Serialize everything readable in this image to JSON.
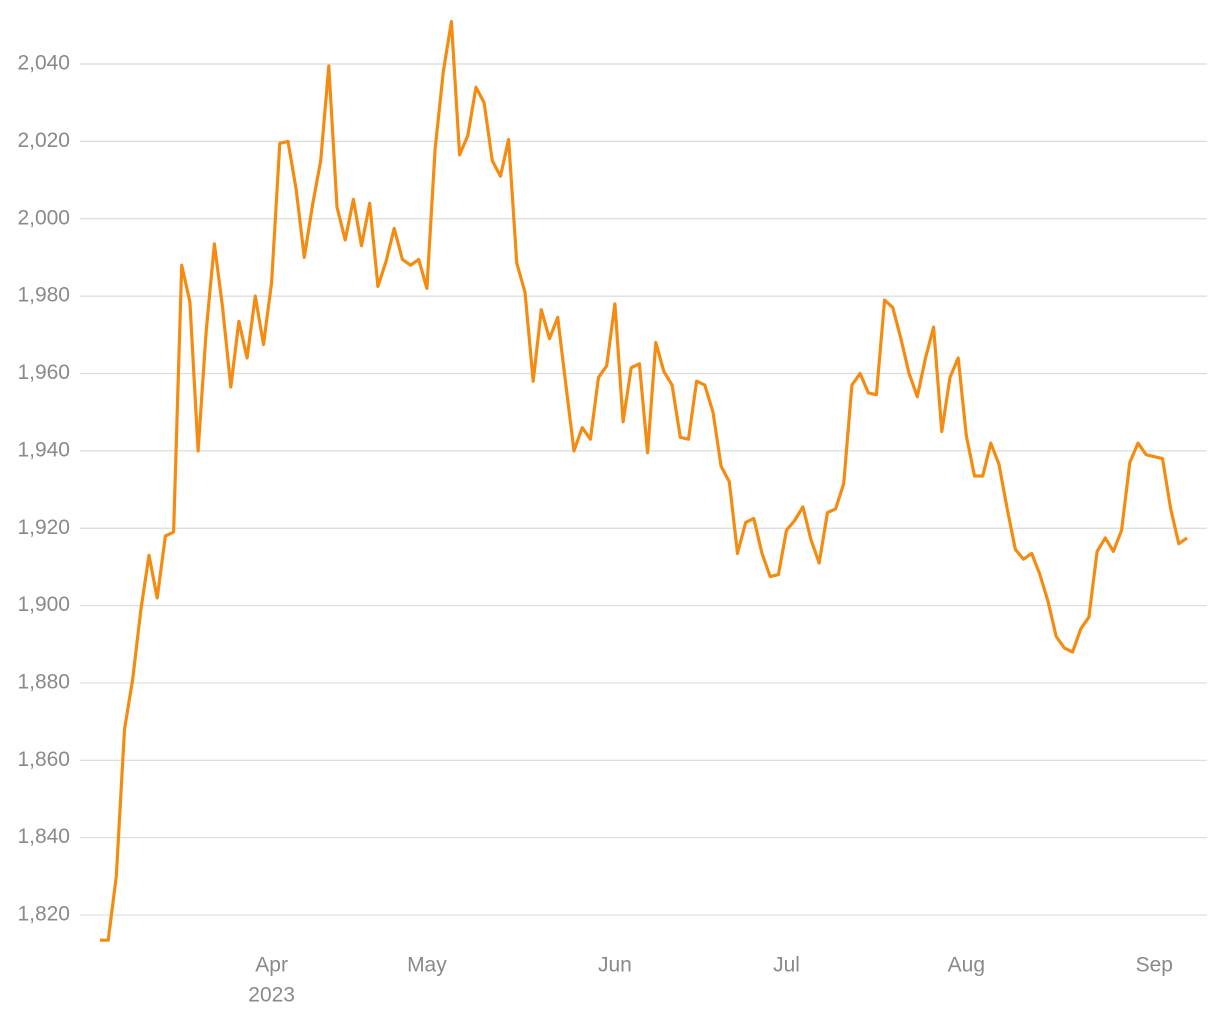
{
  "chart_data": {
    "type": "line",
    "categories": [
      null,
      null,
      null,
      null,
      null,
      null,
      null,
      null,
      null,
      null,
      null,
      null,
      null,
      null,
      null,
      null,
      null,
      null,
      null,
      null,
      null,
      "Apr",
      null,
      null,
      null,
      null,
      null,
      null,
      null,
      null,
      null,
      null,
      null,
      null,
      null,
      null,
      null,
      null,
      null,
      null,
      "May",
      null,
      null,
      null,
      null,
      null,
      null,
      null,
      null,
      null,
      null,
      null,
      null,
      null,
      null,
      null,
      null,
      null,
      null,
      null,
      null,
      null,
      null,
      "Jun",
      null,
      null,
      null,
      null,
      null,
      null,
      null,
      null,
      null,
      null,
      null,
      null,
      null,
      null,
      null,
      null,
      null,
      null,
      null,
      null,
      "Jul",
      null,
      null,
      null,
      null,
      null,
      null,
      null,
      null,
      null,
      null,
      null,
      null,
      null,
      null,
      null,
      null,
      null,
      null,
      null,
      null,
      null,
      "Aug",
      null,
      null,
      null,
      null,
      null,
      null,
      null,
      null,
      null,
      null,
      null,
      null,
      null,
      null,
      null,
      null,
      null,
      null,
      null,
      null,
      null,
      null,
      "Sep",
      null,
      null,
      null,
      null
    ],
    "x_year_label": "2023",
    "series": [
      {
        "color": "#f58c12",
        "values": [
          1813.5,
          1813.5,
          1830,
          1868,
          1881,
          1899,
          1913,
          1902,
          1918,
          1919,
          1988,
          1978.5,
          1940,
          1971,
          1993.5,
          1977,
          1956.5,
          1973.5,
          1964,
          1980,
          1967.5,
          1983.5,
          2019.5,
          2020,
          2007.5,
          1990,
          2003.5,
          2015,
          2039.5,
          2003,
          1994.5,
          2005,
          1993,
          2004,
          1982.5,
          1989,
          1997.5,
          1989.5,
          1988,
          1989.5,
          1982,
          2018,
          2038,
          2051,
          2016.5,
          2021.5,
          2034,
          2030,
          2015,
          2011,
          2020.5,
          1988.5,
          1981,
          1958,
          1976.5,
          1969,
          1974.5,
          1957,
          1940,
          1946,
          1943,
          1959,
          1962,
          1978,
          1947.5,
          1961.5,
          1962.5,
          1939.5,
          1968,
          1960.5,
          1957,
          1943.5,
          1943,
          1958,
          1957,
          1950,
          1936,
          1932,
          1913.5,
          1921.5,
          1922.5,
          1913.5,
          1907.5,
          1908,
          1919.5,
          1922,
          1925.5,
          1917,
          1911,
          1924,
          1925,
          1931.5,
          1957,
          1960,
          1955,
          1954.5,
          1979,
          1977,
          1969,
          1960,
          1954,
          1964,
          1972,
          1945,
          1959,
          1964,
          1944,
          1933.5,
          1933.5,
          1942,
          1936.5,
          1925,
          1914.5,
          1912,
          1913.5,
          1908,
          1901,
          1892,
          1889,
          1888,
          1894,
          1897,
          1914,
          1917.5,
          1914,
          1919.5,
          1937,
          1942,
          1939,
          1938.5,
          1938,
          1925,
          1916,
          1917.5
        ]
      }
    ],
    "ylim": [
      1812,
      2052
    ],
    "yticks": [
      {
        "value": 1820,
        "label": "1,820"
      },
      {
        "value": 1840,
        "label": "1,840"
      },
      {
        "value": 1860,
        "label": "1,860"
      },
      {
        "value": 1880,
        "label": "1,880"
      },
      {
        "value": 1900,
        "label": "1,900"
      },
      {
        "value": 1920,
        "label": "1,920"
      },
      {
        "value": 1940,
        "label": "1,940"
      },
      {
        "value": 1960,
        "label": "1,960"
      },
      {
        "value": 1980,
        "label": "1,980"
      },
      {
        "value": 2000,
        "label": "2,000"
      },
      {
        "value": 2020,
        "label": "2,020"
      },
      {
        "value": 2040,
        "label": "2,040"
      }
    ],
    "grid": true
  }
}
